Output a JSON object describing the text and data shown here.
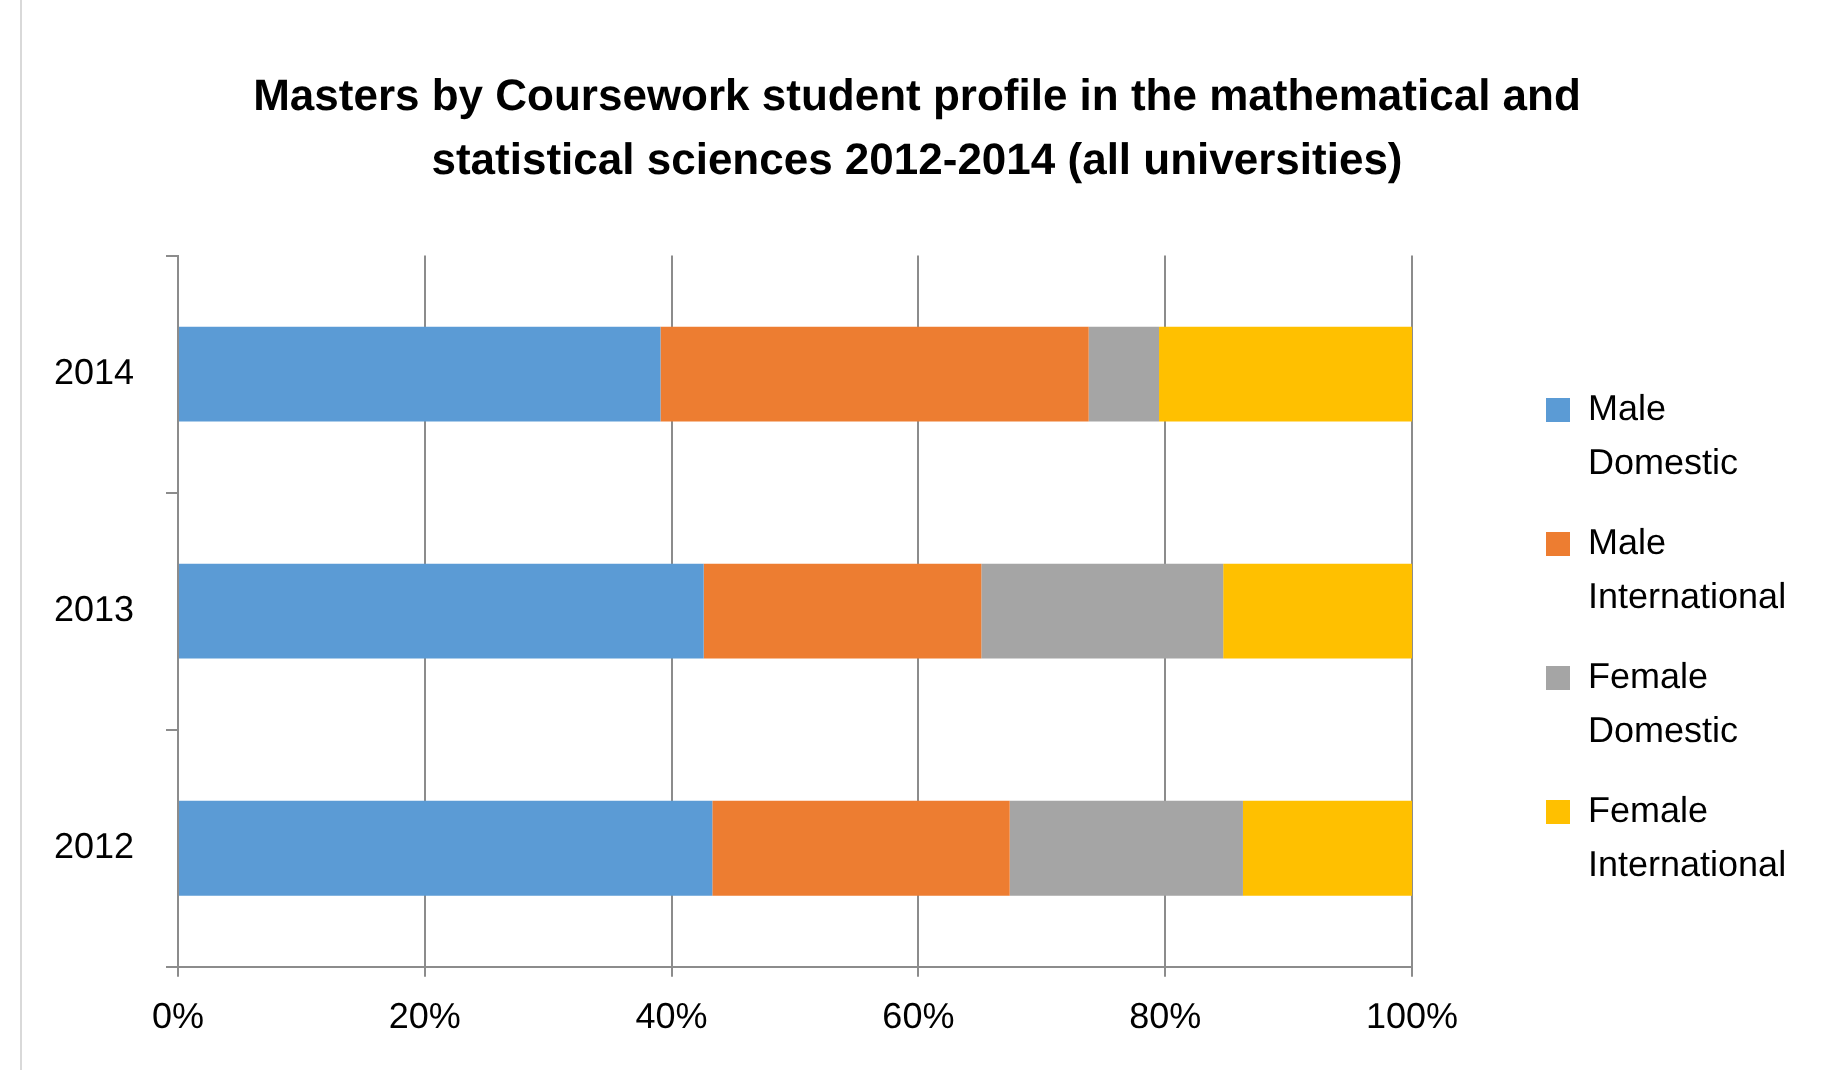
{
  "chart_data": {
    "type": "bar",
    "orientation": "horizontal",
    "stacked": true,
    "title": "Masters by Coursework student profile in the mathematical and statistical sciences 2012-2014 (all universities)",
    "categories": [
      "2014",
      "2013",
      "2012"
    ],
    "series": [
      {
        "name": "Male Domestic",
        "color": "#5b9bd5",
        "values": [
          39.1,
          42.6,
          43.3
        ]
      },
      {
        "name": "Male International",
        "color": "#ed7d31",
        "values": [
          34.7,
          22.5,
          24.1
        ]
      },
      {
        "name": "Female Domestic",
        "color": "#a5a5a5",
        "values": [
          5.7,
          19.6,
          18.9
        ]
      },
      {
        "name": "Female International",
        "color": "#ffc000",
        "values": [
          20.5,
          15.3,
          13.7
        ]
      }
    ],
    "xlim": [
      0,
      100
    ],
    "xticks": [
      {
        "value": 0,
        "label": "0%"
      },
      {
        "value": 20,
        "label": "20%"
      },
      {
        "value": 40,
        "label": "40%"
      },
      {
        "value": 60,
        "label": "60%"
      },
      {
        "value": 80,
        "label": "80%"
      },
      {
        "value": 100,
        "label": "100%"
      }
    ],
    "grid": "x",
    "legend": "right"
  }
}
